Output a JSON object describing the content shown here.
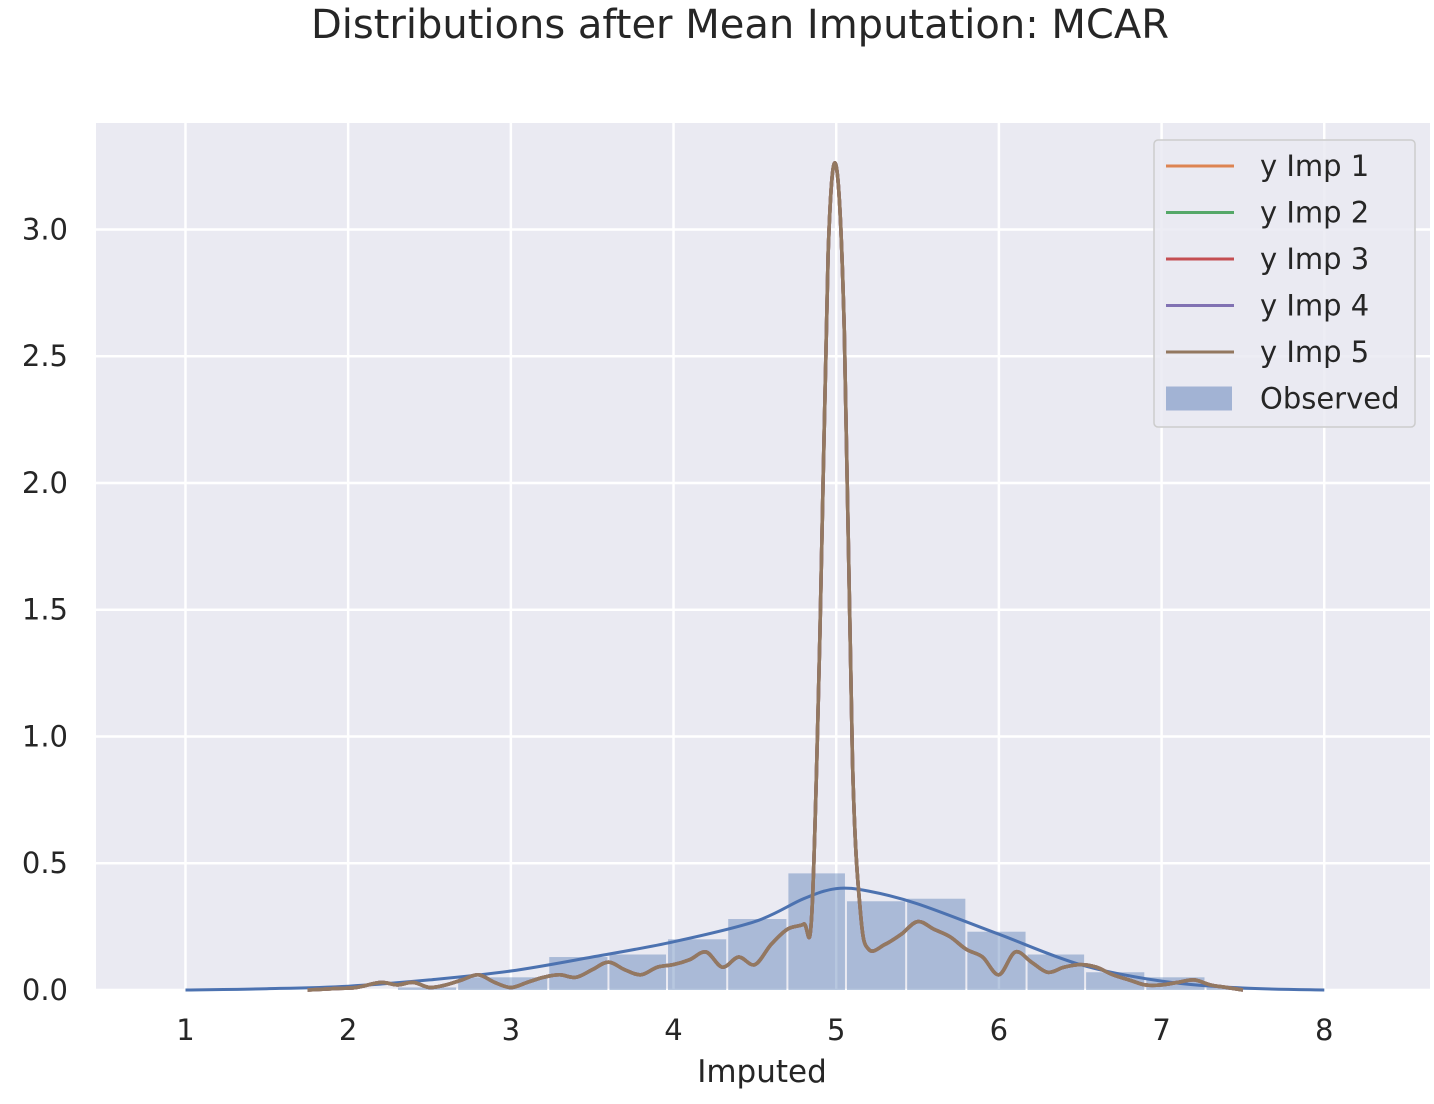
{
  "chart_data": {
    "type": "histogram+kde",
    "title": "Distributions after Mean Imputation: MCAR",
    "xlabel": "Imputed",
    "ylabel": "",
    "xlim": [
      0.45,
      8.65
    ],
    "ylim": [
      0,
      3.42
    ],
    "x_ticks": [
      "1",
      "2",
      "3",
      "4",
      "5",
      "6",
      "7",
      "8"
    ],
    "y_ticks": [
      "0.0",
      "0.5",
      "1.0",
      "1.5",
      "2.0",
      "2.5",
      "3.0"
    ],
    "grid": true,
    "background": "#eaeaf2",
    "legend_position": "top-right",
    "observed": {
      "name": "Observed",
      "color": "#4c72b0",
      "bar_alpha": 0.4,
      "bins": [
        {
          "x0": 2.3,
          "x1": 2.67,
          "density": 0.01
        },
        {
          "x0": 2.67,
          "x1": 3.23,
          "density": 0.05
        },
        {
          "x0": 3.23,
          "x1": 3.6,
          "density": 0.13
        },
        {
          "x0": 3.6,
          "x1": 3.96,
          "density": 0.14
        },
        {
          "x0": 3.96,
          "x1": 4.33,
          "density": 0.2
        },
        {
          "x0": 4.33,
          "x1": 4.7,
          "density": 0.28
        },
        {
          "x0": 4.7,
          "x1": 5.06,
          "density": 0.46
        },
        {
          "x0": 5.06,
          "x1": 5.43,
          "density": 0.35
        },
        {
          "x0": 5.43,
          "x1": 5.8,
          "density": 0.36
        },
        {
          "x0": 5.8,
          "x1": 6.17,
          "density": 0.23
        },
        {
          "x0": 6.17,
          "x1": 6.53,
          "density": 0.14
        },
        {
          "x0": 6.53,
          "x1": 6.9,
          "density": 0.07
        },
        {
          "x0": 6.9,
          "x1": 7.27,
          "density": 0.05
        },
        {
          "x0": 7.27,
          "x1": 7.64,
          "density": 0.01
        }
      ],
      "kde": {
        "x": [
          1.0,
          1.5,
          2.0,
          2.5,
          3.0,
          3.5,
          4.0,
          4.5,
          4.8,
          5.0,
          5.2,
          5.5,
          6.0,
          6.5,
          7.0,
          7.5,
          8.0
        ],
        "y": [
          0.0,
          0.005,
          0.015,
          0.04,
          0.075,
          0.13,
          0.19,
          0.27,
          0.36,
          0.4,
          0.39,
          0.34,
          0.22,
          0.1,
          0.035,
          0.008,
          0.0
        ]
      }
    },
    "imputed": {
      "series_names": [
        "y Imp 1",
        "y Imp 2",
        "y Imp 3",
        "y Imp 4",
        "y Imp 5"
      ],
      "colors": [
        "#dd8452",
        "#55a868",
        "#c44e52",
        "#8172b3",
        "#937860"
      ],
      "x": [
        1.75,
        1.9,
        2.05,
        2.2,
        2.3,
        2.4,
        2.5,
        2.6,
        2.7,
        2.8,
        2.9,
        3.0,
        3.1,
        3.2,
        3.3,
        3.4,
        3.5,
        3.6,
        3.7,
        3.8,
        3.9,
        4.0,
        4.1,
        4.2,
        4.3,
        4.4,
        4.5,
        4.6,
        4.7,
        4.8,
        4.85,
        4.9,
        4.95,
        5.0,
        5.05,
        5.1,
        5.15,
        5.2,
        5.3,
        5.4,
        5.5,
        5.6,
        5.7,
        5.8,
        5.9,
        6.0,
        6.1,
        6.2,
        6.3,
        6.4,
        6.5,
        6.6,
        6.7,
        6.8,
        6.9,
        7.0,
        7.1,
        7.2,
        7.3,
        7.4,
        7.5
      ],
      "y": [
        0.0,
        0.005,
        0.01,
        0.03,
        0.02,
        0.03,
        0.01,
        0.02,
        0.04,
        0.06,
        0.03,
        0.01,
        0.03,
        0.05,
        0.06,
        0.05,
        0.08,
        0.11,
        0.08,
        0.06,
        0.09,
        0.1,
        0.12,
        0.15,
        0.09,
        0.13,
        0.1,
        0.18,
        0.24,
        0.26,
        0.3,
        1.4,
        2.9,
        3.25,
        2.6,
        0.9,
        0.3,
        0.16,
        0.18,
        0.22,
        0.27,
        0.24,
        0.21,
        0.16,
        0.13,
        0.06,
        0.15,
        0.11,
        0.07,
        0.09,
        0.1,
        0.09,
        0.06,
        0.04,
        0.02,
        0.02,
        0.03,
        0.04,
        0.02,
        0.01,
        0.0
      ]
    },
    "legend_entries": [
      "y Imp 1",
      "y Imp 2",
      "y Imp 3",
      "y Imp 4",
      "y Imp 5",
      "Observed"
    ]
  }
}
